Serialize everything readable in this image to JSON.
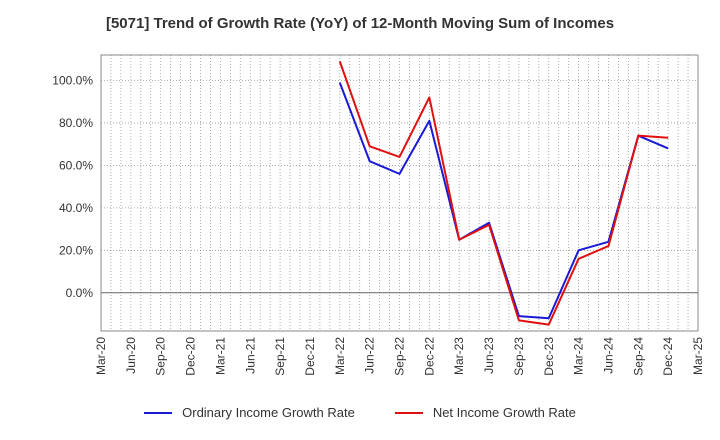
{
  "chart_data": {
    "type": "line",
    "title": "[5071]  Trend of Growth Rate (YoY) of 12-Month Moving Sum of Incomes",
    "xlabel": "",
    "ylabel": "",
    "x_tick_labels": [
      "Mar-20",
      "Jun-20",
      "Sep-20",
      "Dec-20",
      "Mar-21",
      "Jun-21",
      "Sep-21",
      "Dec-21",
      "Mar-22",
      "Jun-22",
      "Sep-22",
      "Dec-22",
      "Mar-23",
      "Jun-23",
      "Sep-23",
      "Dec-23",
      "Mar-24",
      "Jun-24",
      "Sep-24",
      "Dec-24",
      "Mar-25"
    ],
    "y_tick_labels": [
      "100.0%",
      "80.0%",
      "60.0%",
      "40.0%",
      "20.0%",
      "0.0%"
    ],
    "y_tick_values": [
      100,
      80,
      60,
      40,
      20,
      0
    ],
    "ylim": [
      -18,
      112
    ],
    "grid": true,
    "legend_position": "bottom",
    "series": [
      {
        "name": "Ordinary Income Growth Rate",
        "color": "#1a1ad6",
        "x": [
          "Mar-22",
          "Jun-22",
          "Sep-22",
          "Dec-22",
          "Mar-23",
          "Jun-23",
          "Sep-23",
          "Dec-23",
          "Mar-24",
          "Jun-24",
          "Sep-24",
          "Dec-24"
        ],
        "values": [
          99,
          62,
          56,
          81,
          25,
          33,
          -11,
          -12,
          20,
          24,
          74,
          68
        ]
      },
      {
        "name": "Net Income Growth Rate",
        "color": "#e01010",
        "x": [
          "Mar-22",
          "Jun-22",
          "Sep-22",
          "Dec-22",
          "Mar-23",
          "Jun-23",
          "Sep-23",
          "Dec-23",
          "Mar-24",
          "Jun-24",
          "Sep-24",
          "Dec-24"
        ],
        "values": [
          109,
          69,
          64,
          92,
          25,
          32,
          -13,
          -15,
          16,
          22,
          74,
          73
        ]
      }
    ]
  }
}
